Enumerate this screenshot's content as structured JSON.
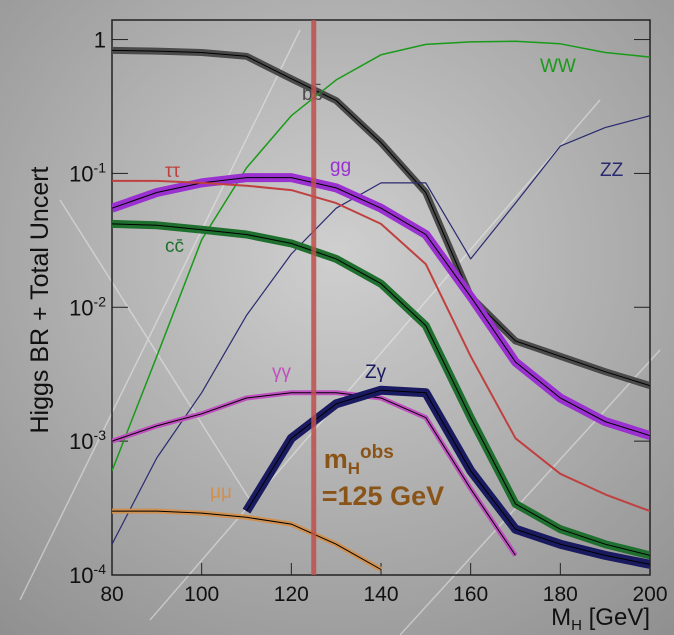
{
  "chart_data": {
    "type": "line",
    "y_label": "Higgs BR + Total Uncert",
    "x_label": {
      "symbol": "M",
      "subscript": "H",
      "unit": "[GeV]"
    },
    "log_y": true,
    "x": [
      80,
      90,
      100,
      110,
      120,
      130,
      140,
      150,
      160,
      170,
      180,
      190,
      200
    ],
    "xlim": [
      80,
      200
    ],
    "xticks": [
      80,
      100,
      120,
      140,
      160,
      180,
      200
    ],
    "ylim": [
      0.0001,
      1.4
    ],
    "yticks": [
      {
        "value": 0.0001,
        "label": "10",
        "exponent": "-4"
      },
      {
        "value": 0.001,
        "label": "10",
        "exponent": "-3"
      },
      {
        "value": 0.01,
        "label": "10",
        "exponent": "-2"
      },
      {
        "value": 0.1,
        "label": "10",
        "exponent": "-1"
      },
      1
    ],
    "series": [
      {
        "name": "bb̄",
        "color": "#4a4a4a",
        "values": [
          0.83,
          0.82,
          0.8,
          0.75,
          0.51,
          0.35,
          0.17,
          0.072,
          0.012,
          0.0056,
          0.0043,
          0.0033,
          0.0026
        ]
      },
      {
        "name": "WW",
        "color": "#1a9a1a",
        "values": [
          0.0006,
          0.0043,
          0.032,
          0.11,
          0.27,
          0.5,
          0.77,
          0.92,
          0.96,
          0.97,
          0.93,
          0.8,
          0.74
        ]
      },
      {
        "name": "ZZ",
        "color": "#2a2a70",
        "values": [
          0.00017,
          0.00075,
          0.0023,
          0.0087,
          0.025,
          0.055,
          0.085,
          0.085,
          0.023,
          0.06,
          0.16,
          0.22,
          0.27
        ]
      },
      {
        "name": "gg",
        "color": "#9a30d0",
        "values": [
          0.055,
          0.072,
          0.085,
          0.093,
          0.093,
          0.078,
          0.055,
          0.035,
          0.012,
          0.0039,
          0.0021,
          0.0014,
          0.0011
        ]
      },
      {
        "name": "ττ",
        "color": "#c04040",
        "values": [
          0.088,
          0.088,
          0.085,
          0.081,
          0.075,
          0.06,
          0.042,
          0.021,
          0.0043,
          0.00105,
          0.00057,
          0.0004,
          0.0003
        ]
      },
      {
        "name": "cc̄",
        "color": "#1f6f2f",
        "values": [
          0.042,
          0.041,
          0.038,
          0.035,
          0.03,
          0.023,
          0.015,
          0.0073,
          0.0015,
          0.00034,
          0.00022,
          0.00017,
          0.00014
        ]
      },
      {
        "name": "γγ",
        "color": "#c050c0",
        "values": [
          0.001,
          0.0013,
          0.0016,
          0.0021,
          0.0023,
          0.0023,
          0.0021,
          0.0015,
          0.00044,
          0.00014,
          null,
          null,
          null
        ]
      },
      {
        "name": "Zγ",
        "color": "#1a1a60",
        "values": [
          null,
          null,
          null,
          0.0003,
          0.00105,
          0.0019,
          0.0024,
          0.0023,
          0.0006,
          0.00022,
          0.00017,
          0.00014,
          0.00012
        ]
      },
      {
        "name": "μμ",
        "color": "#d09050",
        "values": [
          0.0003,
          0.0003,
          0.00029,
          0.00027,
          0.00024,
          0.00017,
          0.00011,
          null,
          null,
          null,
          null,
          null,
          null
        ]
      }
    ],
    "marker": {
      "x": 125,
      "color": "#c0504d",
      "symbol": "m",
      "subscript": "H",
      "superscript": "obs",
      "text": "=125 GeV",
      "text_color": "#8a5418"
    }
  }
}
